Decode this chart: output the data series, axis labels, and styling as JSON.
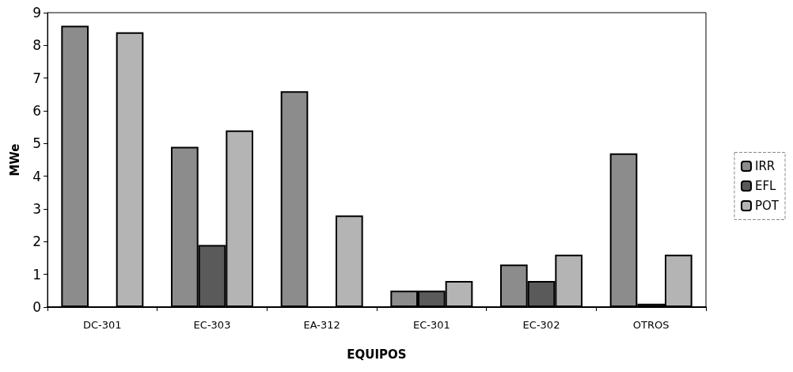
{
  "chart_data": {
    "type": "bar",
    "xlabel": "EQUIPOS",
    "ylabel": "MWe",
    "categories": [
      "DC-301",
      "EC-303",
      "EA-312",
      "EC-301",
      "EC-302",
      "OTROS"
    ],
    "series": [
      {
        "name": "IRR",
        "color": "#8c8c8c",
        "values": [
          8.6,
          4.9,
          6.6,
          0.5,
          1.3,
          4.7
        ]
      },
      {
        "name": "EFL",
        "color": "#5a5a5a",
        "values": [
          null,
          1.9,
          null,
          0.5,
          0.8,
          0.1
        ]
      },
      {
        "name": "POT",
        "color": "#b4b4b4",
        "values": [
          8.4,
          5.4,
          2.8,
          0.8,
          1.6,
          1.6
        ]
      }
    ],
    "ylim": [
      0,
      9
    ],
    "yticks": [
      0,
      1,
      2,
      3,
      4,
      5,
      6,
      7,
      8,
      9
    ],
    "grid": false,
    "legend": "right"
  }
}
